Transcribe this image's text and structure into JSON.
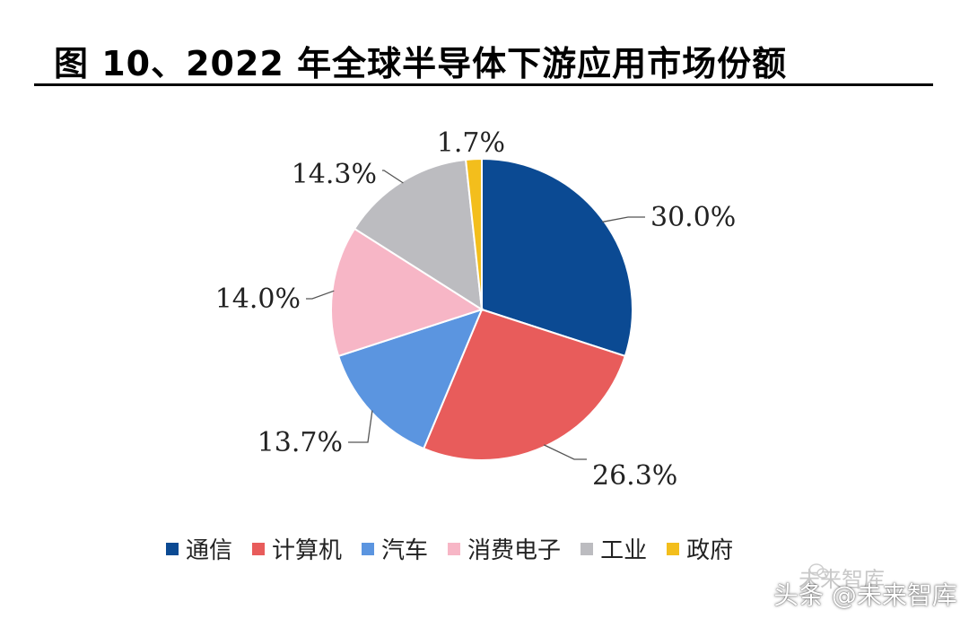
{
  "title": "图 10、2022 年全球半导体下游应用市场份额",
  "watermark": {
    "faint_text": "未来智库",
    "text": "头条 @未来智库",
    "icon": "wechat-icon"
  },
  "chart_data": {
    "type": "pie",
    "title": "图 10、2022 年全球半导体下游应用市场份额",
    "start_angle_deg": 0,
    "direction": "clockwise",
    "legend_position": "bottom",
    "slices": [
      {
        "name": "通信",
        "value": 30.0,
        "label": "30.0%",
        "color": "#0b4a93"
      },
      {
        "name": "计算机",
        "value": 26.3,
        "label": "26.3%",
        "color": "#e85c5b"
      },
      {
        "name": "汽车",
        "value": 13.7,
        "label": "13.7%",
        "color": "#5b95e0"
      },
      {
        "name": "消费电子",
        "value": 14.0,
        "label": "14.0%",
        "color": "#f7b6c6"
      },
      {
        "name": "工业",
        "value": 14.3,
        "label": "14.3%",
        "color": "#bcbcc0"
      },
      {
        "name": "政府",
        "value": 1.7,
        "label": "1.7%",
        "color": "#f3be1c"
      }
    ]
  }
}
